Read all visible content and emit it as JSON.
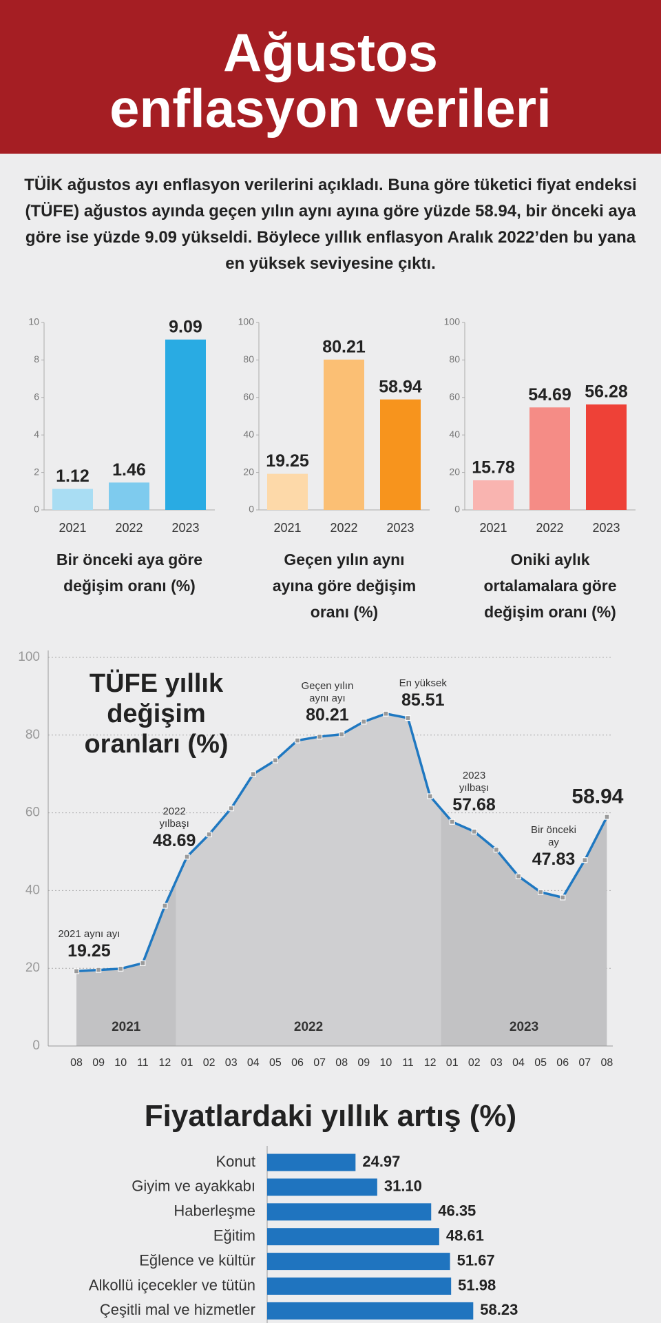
{
  "header": {
    "title": "Ağustos enflasyon verileri"
  },
  "intro": "TÜİK ağustos ayı enflasyon verilerini açıkladı. Buna göre tüketici fiyat endeksi (TÜFE) ağustos ayında geçen yılın aynı ayına göre yüzde 58.94, bir önceki aya göre ise yüzde 9.09 yükseldi. Böylece yıllık enflasyon Aralık 2022’den bu yana en yüksek seviyesine çıktı.",
  "chart_data": [
    {
      "type": "bar",
      "title": "Bir önceki aya göre değişim oranı (%)",
      "categories": [
        "2021",
        "2022",
        "2023"
      ],
      "values": [
        1.12,
        1.46,
        9.09
      ],
      "colors": [
        "#a9ddf3",
        "#7ecbee",
        "#29abe3"
      ],
      "ylim": [
        0,
        10
      ],
      "yticks": [
        0,
        2,
        4,
        6,
        8,
        10
      ]
    },
    {
      "type": "bar",
      "title": "Geçen yılın aynı ayına göre değişim oranı (%)",
      "categories": [
        "2021",
        "2022",
        "2023"
      ],
      "values": [
        19.25,
        80.21,
        58.94
      ],
      "colors": [
        "#fdd9a9",
        "#fbbf74",
        "#f7941d"
      ],
      "ylim": [
        0,
        100
      ],
      "yticks": [
        0,
        20,
        40,
        60,
        80,
        100
      ]
    },
    {
      "type": "bar",
      "title": "Oniki aylık ortalamalara göre değişim oranı (%)",
      "categories": [
        "2021",
        "2022",
        "2023"
      ],
      "values": [
        15.78,
        54.69,
        56.28
      ],
      "colors": [
        "#f9b4b0",
        "#f58c86",
        "#ee4137"
      ],
      "ylim": [
        0,
        100
      ],
      "yticks": [
        0,
        20,
        40,
        60,
        80,
        100
      ]
    },
    {
      "type": "line",
      "title": "TÜFE yıllık değişim oranları (%)",
      "categories": [
        "08",
        "09",
        "10",
        "11",
        "12",
        "01",
        "02",
        "03",
        "04",
        "05",
        "06",
        "07",
        "08",
        "09",
        "10",
        "11",
        "12",
        "01",
        "02",
        "03",
        "04",
        "05",
        "06",
        "07",
        "08"
      ],
      "year_labels": [
        "2021",
        "2022",
        "2023"
      ],
      "values": [
        19.25,
        19.58,
        19.89,
        21.31,
        36.08,
        48.69,
        54.44,
        61.14,
        69.97,
        73.5,
        78.62,
        79.6,
        80.21,
        83.45,
        85.51,
        84.39,
        64.27,
        57.68,
        55.18,
        50.51,
        43.68,
        39.59,
        38.21,
        47.83,
        58.94
      ],
      "annotations": [
        "2021 aynı ayı",
        null,
        null,
        null,
        null,
        "2022 yılbaşı",
        null,
        null,
        null,
        null,
        null,
        null,
        "Geçen yılın aynı ayı",
        null,
        "En yüksek",
        null,
        null,
        "2023 yılbaşı",
        null,
        null,
        null,
        null,
        null,
        "Bir önceki ay",
        null
      ],
      "color": "#1f78c1",
      "ylim": [
        0,
        100
      ],
      "yticks": [
        0,
        20,
        40,
        60,
        80,
        100
      ],
      "grid": true
    },
    {
      "type": "hbar",
      "title": "Fiyatlardaki yıllık artış (%)",
      "categories": [
        "Konut",
        "Giyim ve ayakkabı",
        "Haberleşme",
        "Eğitim",
        "Eğlence ve kültür",
        "Alkollü içecekler ve tütün",
        "Çeşitli mal ve hizmetler"
      ],
      "values": [
        24.97,
        31.1,
        46.35,
        48.61,
        51.67,
        51.98,
        58.23
      ],
      "value_labels": [
        "24.97",
        "31.10",
        "46.35",
        "48.61",
        "51.67",
        "51.98",
        "58.23"
      ],
      "color": "#1f74bf",
      "xlim": [
        0,
        100
      ]
    }
  ]
}
